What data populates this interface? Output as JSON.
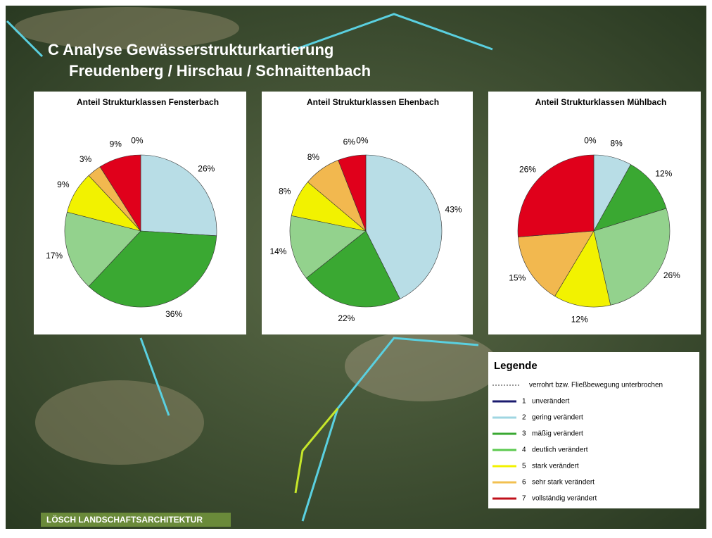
{
  "title": [
    "C Analyse Gewässerstrukturkartierung",
    "Freudenberg / Hirschau / Schnaittenbach"
  ],
  "chart_data": [
    {
      "type": "pie",
      "title": "Anteil Strukturklassen Fensterbach",
      "values": [
        0,
        26,
        36,
        17,
        9,
        3,
        9
      ],
      "value_labels": [
        "0%",
        "26%",
        "36%",
        "17%",
        "9%",
        "3%",
        "9%"
      ],
      "colors": [
        "#1a1a6e",
        "#b8dde6",
        "#3aa832",
        "#93d28d",
        "#f2f200",
        "#f2b84f",
        "#e0001b"
      ]
    },
    {
      "type": "pie",
      "title": "Anteil Strukturklassen Ehenbach",
      "values": [
        0,
        43,
        22,
        14,
        8,
        8,
        6
      ],
      "value_labels": [
        "0%",
        "43%",
        "22%",
        "14%",
        "8%",
        "8%",
        "6%"
      ],
      "colors": [
        "#1a1a6e",
        "#b8dde6",
        "#3aa832",
        "#93d28d",
        "#f2f200",
        "#f2b84f",
        "#e0001b"
      ]
    },
    {
      "type": "pie",
      "title": "Anteil Strukturklassen Mühlbach",
      "values": [
        0,
        8,
        12,
        26,
        12,
        15,
        26
      ],
      "value_labels": [
        "0%",
        "8%",
        "12%",
        "26%",
        "12%",
        "15%",
        "26%"
      ],
      "colors": [
        "#1a1a6e",
        "#b8dde6",
        "#3aa832",
        "#93d28d",
        "#f2f200",
        "#f2b84f",
        "#e0001b"
      ]
    }
  ],
  "legend": {
    "title": "Legende",
    "items": [
      "verrohrt bzw. Fließbewegung unterbrochen",
      "1",
      "unverändert",
      "2",
      "gering verändert",
      "3",
      "mäßig verändert",
      "4",
      "deutlich verändert",
      "5",
      "stark verändert",
      "6",
      "sehr stark verändert",
      "7",
      "vollständig verändert"
    ]
  },
  "footer": "LÖSCH LANDSCHAFTSARCHITEKTUR"
}
